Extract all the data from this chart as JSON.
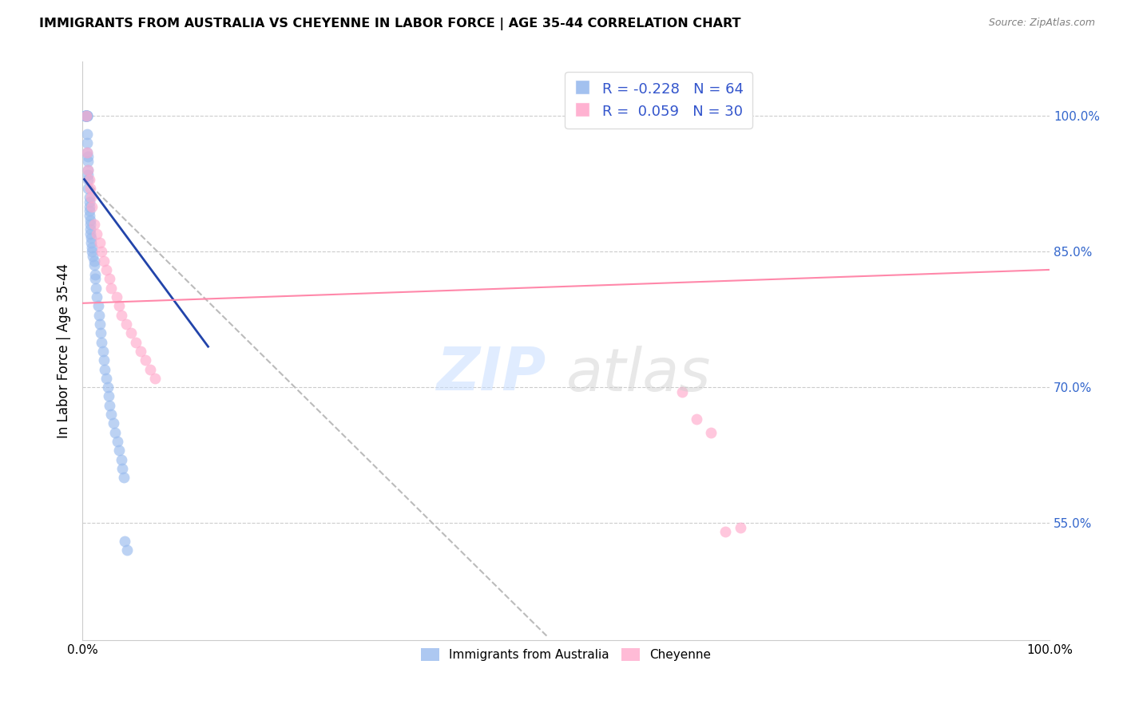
{
  "title": "IMMIGRANTS FROM AUSTRALIA VS CHEYENNE IN LABOR FORCE | AGE 35-44 CORRELATION CHART",
  "source": "Source: ZipAtlas.com",
  "ylabel": "In Labor Force | Age 35-44",
  "ytick_labels": [
    "55.0%",
    "70.0%",
    "85.0%",
    "100.0%"
  ],
  "ytick_values": [
    0.55,
    0.7,
    0.85,
    1.0
  ],
  "xlim": [
    0.0,
    1.0
  ],
  "ylim": [
    0.42,
    1.06
  ],
  "color_blue": "#99BBEE",
  "color_pink": "#FFAACC",
  "color_blue_line": "#2244AA",
  "color_pink_line": "#FF88AA",
  "color_dashed_line": "#BBBBBB",
  "blue_scatter_x": [
    0.002,
    0.003,
    0.003,
    0.003,
    0.003,
    0.004,
    0.004,
    0.004,
    0.004,
    0.005,
    0.005,
    0.005,
    0.005,
    0.005,
    0.005,
    0.005,
    0.006,
    0.006,
    0.006,
    0.006,
    0.006,
    0.006,
    0.007,
    0.007,
    0.007,
    0.007,
    0.007,
    0.008,
    0.008,
    0.008,
    0.008,
    0.009,
    0.009,
    0.01,
    0.01,
    0.011,
    0.012,
    0.012,
    0.013,
    0.013,
    0.014,
    0.015,
    0.016,
    0.017,
    0.018,
    0.019,
    0.02,
    0.021,
    0.022,
    0.023,
    0.025,
    0.026,
    0.027,
    0.028,
    0.03,
    0.032,
    0.034,
    0.036,
    0.038,
    0.04,
    0.041,
    0.043,
    0.044,
    0.046
  ],
  "blue_scatter_y": [
    1.0,
    1.0,
    1.0,
    1.0,
    1.0,
    1.0,
    1.0,
    1.0,
    1.0,
    1.0,
    1.0,
    1.0,
    1.0,
    0.98,
    0.97,
    0.96,
    0.955,
    0.95,
    0.94,
    0.935,
    0.93,
    0.92,
    0.91,
    0.905,
    0.9,
    0.895,
    0.89,
    0.885,
    0.88,
    0.875,
    0.87,
    0.865,
    0.86,
    0.855,
    0.85,
    0.845,
    0.84,
    0.835,
    0.825,
    0.82,
    0.81,
    0.8,
    0.79,
    0.78,
    0.77,
    0.76,
    0.75,
    0.74,
    0.73,
    0.72,
    0.71,
    0.7,
    0.69,
    0.68,
    0.67,
    0.66,
    0.65,
    0.64,
    0.63,
    0.62,
    0.61,
    0.6,
    0.53,
    0.52
  ],
  "pink_scatter_x": [
    0.004,
    0.005,
    0.006,
    0.007,
    0.008,
    0.009,
    0.01,
    0.012,
    0.015,
    0.018,
    0.02,
    0.022,
    0.025,
    0.028,
    0.03,
    0.035,
    0.038,
    0.04,
    0.045,
    0.05,
    0.055,
    0.06,
    0.065,
    0.07,
    0.075,
    0.62,
    0.635,
    0.65,
    0.665,
    0.68
  ],
  "pink_scatter_y": [
    1.0,
    0.96,
    0.94,
    0.93,
    0.92,
    0.91,
    0.9,
    0.88,
    0.87,
    0.86,
    0.85,
    0.84,
    0.83,
    0.82,
    0.81,
    0.8,
    0.79,
    0.78,
    0.77,
    0.76,
    0.75,
    0.74,
    0.73,
    0.72,
    0.71,
    0.695,
    0.665,
    0.65,
    0.54,
    0.545
  ],
  "blue_line_x0": 0.002,
  "blue_line_x1": 0.13,
  "blue_line_y0": 0.93,
  "blue_line_y1": 0.745,
  "pink_line_x0": 0.0,
  "pink_line_x1": 1.0,
  "pink_line_y0": 0.793,
  "pink_line_y1": 0.83,
  "dashed_line_x0": 0.002,
  "dashed_line_x1": 0.48,
  "dashed_line_y0": 0.93,
  "dashed_line_y1": 0.425,
  "legend1_label": "R = -0.228   N = 64",
  "legend2_label": "R =  0.059   N = 30",
  "bottom_legend1": "Immigrants from Australia",
  "bottom_legend2": "Cheyenne"
}
